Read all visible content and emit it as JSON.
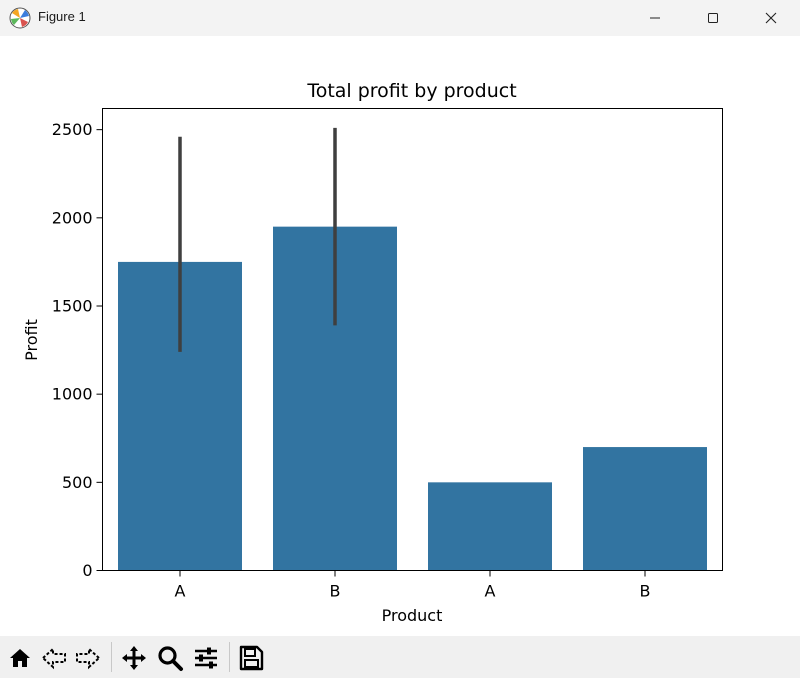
{
  "window": {
    "title": "Figure 1",
    "icons": [
      "matplotlib-logo-icon",
      "minimize-icon",
      "maximize-icon",
      "close-icon"
    ]
  },
  "toolbar": {
    "icons": [
      "home-icon",
      "back-icon",
      "forward-icon",
      "pan-icon",
      "zoom-icon",
      "configure-subplots-icon",
      "save-icon"
    ]
  },
  "colors": {
    "bar": "#3274a1",
    "errorbar": "#3f3f3f",
    "axis": "#000000"
  },
  "chart_data": {
    "type": "bar",
    "title": "Total profit by product",
    "xlabel": "Product",
    "ylabel": "Profit",
    "categories": [
      "A",
      "B",
      "A",
      "B"
    ],
    "values": [
      1750,
      1950,
      500,
      700
    ],
    "error_bars": [
      [
        1240,
        2460
      ],
      [
        1390,
        2510
      ],
      null,
      null
    ],
    "ylim": [
      0,
      2620
    ],
    "yticks": [
      0,
      500,
      1000,
      1500,
      2000,
      2500
    ],
    "grid": false
  }
}
